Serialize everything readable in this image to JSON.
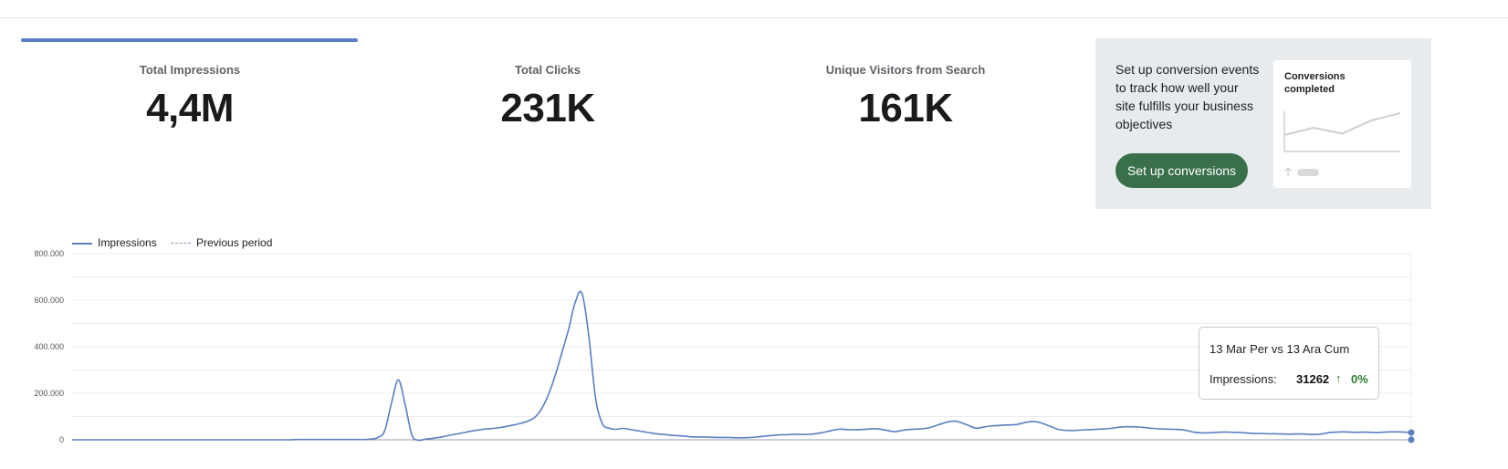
{
  "metrics": [
    {
      "label": "Total Impressions",
      "value": "4,4M",
      "selected": true
    },
    {
      "label": "Total Clicks",
      "value": "231K",
      "selected": false
    },
    {
      "label": "Unique Visitors from Search",
      "value": "161K",
      "selected": false
    }
  ],
  "conversion_panel": {
    "text": "Set up conversion events to track how well your site fulfills your business objectives",
    "button_label": "Set up conversions",
    "card_title": "Conversions completed"
  },
  "legend": {
    "current": "Impressions",
    "previous": "Previous period"
  },
  "tooltip": {
    "title": "13 Mar Per vs 13 Ara Cum",
    "metric_label": "Impressions:",
    "value": "31262",
    "arrow": "↑",
    "change": "0%"
  },
  "colors": {
    "series": "#5b7fc2",
    "previous": "#8a9bb5",
    "positive": "#2e7d32",
    "button": "#3a6f4c",
    "panel_bg": "#e8ebee"
  },
  "chart_data": {
    "type": "line",
    "ylim": [
      0,
      800000
    ],
    "yticks": [
      "0",
      "200.000",
      "400.000",
      "600.000",
      "800.000"
    ],
    "series": [
      {
        "name": "Impressions",
        "values": [
          0,
          0,
          0,
          0,
          0,
          0,
          0,
          0,
          0,
          0,
          0,
          0,
          0,
          0,
          0,
          0,
          0,
          0,
          0,
          0,
          0,
          0,
          0,
          0,
          0,
          0,
          0,
          0,
          0,
          0,
          0,
          0,
          0,
          1000,
          1000,
          1000,
          1000,
          1000,
          1000,
          1000,
          1000,
          1000,
          1000,
          1000,
          3000,
          10000,
          40000,
          160000,
          258000,
          150000,
          20000,
          -2000,
          3000,
          6000,
          10000,
          16000,
          22000,
          27000,
          33000,
          39000,
          43000,
          47000,
          49000,
          53000,
          58000,
          64000,
          71000,
          80000,
          95000,
          130000,
          190000,
          270000,
          370000,
          470000,
          590000,
          630000,
          450000,
          180000,
          70000,
          50000,
          45000,
          49000,
          45000,
          40000,
          35000,
          30000,
          26000,
          23000,
          20000,
          18000,
          16000,
          13000,
          12000,
          12000,
          11000,
          10000,
          10000,
          9500,
          8500,
          9000,
          10000,
          13000,
          16000,
          19000,
          21000,
          22000,
          23000,
          23000,
          23000,
          25000,
          29000,
          35000,
          42000,
          46000,
          44000,
          43000,
          44000,
          46000,
          48000,
          45000,
          40000,
          35000,
          40000,
          44000,
          46000,
          47000,
          51000,
          60000,
          70000,
          78000,
          80000,
          71000,
          60000,
          50000,
          54000,
          59000,
          61000,
          63000,
          64000,
          66000,
          73000,
          78000,
          77000,
          68000,
          57000,
          45000,
          41000,
          40000,
          41000,
          43000,
          44000,
          46000,
          47000,
          50000,
          54000,
          56000,
          56000,
          55000,
          52000,
          49000,
          47000,
          46000,
          45000,
          44000,
          40000,
          33000,
          30000,
          30000,
          31000,
          33000,
          33000,
          32000,
          31000,
          29000,
          27000,
          27000,
          26000,
          26000,
          25000,
          24000,
          25000,
          25000,
          23000,
          23000,
          26000,
          31000,
          33000,
          34000,
          33000,
          32000,
          33000,
          32000,
          31000,
          33000,
          34000,
          34000,
          33000,
          31262
        ]
      },
      {
        "name": "Previous period",
        "values": [
          0,
          0
        ]
      }
    ],
    "conversion_sparkline": [
      0.25,
      0.5,
      0.3,
      0.75,
      1.0
    ]
  }
}
